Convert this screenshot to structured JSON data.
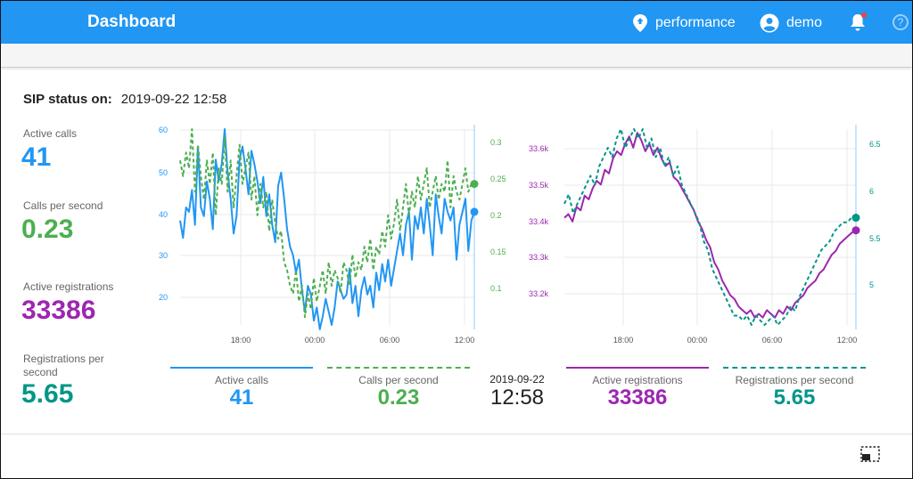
{
  "appbar": {
    "title": "Dashboard",
    "location_label": "performance",
    "user_label": "demo",
    "help_glyph": "?",
    "accent": "#2196f3"
  },
  "status": {
    "label": "SIP status on:",
    "datetime": "2019-09-22 12:58"
  },
  "metrics": [
    {
      "label": "Active calls",
      "value": "41",
      "color": "#2196f3"
    },
    {
      "label": "Calls per second",
      "value": "0.23",
      "color": "#4caf50"
    },
    {
      "label": "Active registrations",
      "value": "33386",
      "color": "#9c27b0"
    },
    {
      "label": "Registrations per second",
      "value": "5.65",
      "color": "#009688"
    }
  ],
  "legend": {
    "active_calls": {
      "label": "Active calls",
      "value": "41"
    },
    "calls_per_second": {
      "label": "Calls per second",
      "value": "0.23"
    },
    "date": "2019-09-22",
    "time": "12:58",
    "active_registrations": {
      "label": "Active registrations",
      "value": "33386"
    },
    "registrations_per_second": {
      "label": "Registrations per second",
      "value": "5.65"
    }
  },
  "chart_data": [
    {
      "type": "line",
      "x_ticks": [
        "18:00",
        "00:00",
        "06:00",
        "12:00"
      ],
      "y_left_ticks": [
        "60",
        "50",
        "40",
        "30",
        "20"
      ],
      "y_left_range": [
        15,
        60
      ],
      "y_right_ticks": [
        "0.3",
        "0.25",
        "0.2",
        "0.15",
        "0.1"
      ],
      "y_right_range": [
        0.05,
        0.3
      ],
      "grid": true,
      "series": [
        {
          "name": "Active calls",
          "axis": "left",
          "style": "solid",
          "color": "#2196f3",
          "values": [
            39,
            35,
            42,
            41,
            46,
            38,
            56,
            42,
            40,
            48,
            44,
            37,
            53,
            48,
            52,
            60,
            50,
            44,
            36,
            40,
            53,
            56,
            51,
            45,
            55,
            52,
            48,
            43,
            49,
            40,
            45,
            38,
            34,
            47,
            50,
            44,
            37,
            33,
            31,
            27,
            30,
            23,
            18,
            24,
            22,
            16,
            19,
            14,
            17,
            21,
            18,
            15,
            19,
            25,
            23,
            21,
            22,
            28,
            20,
            24,
            17,
            23,
            26,
            22,
            24,
            19,
            27,
            23,
            29,
            25,
            30,
            24,
            28,
            32,
            36,
            31,
            38,
            41,
            30,
            40,
            37,
            42,
            36,
            44,
            38,
            31,
            45,
            40,
            36,
            44,
            41,
            39,
            42,
            30,
            38,
            41,
            44,
            32,
            39,
            41
          ]
        },
        {
          "name": "Calls per second",
          "axis": "right",
          "style": "dashed",
          "color": "#4caf50",
          "values": [
            0.26,
            0.24,
            0.27,
            0.25,
            0.3,
            0.22,
            0.28,
            0.24,
            0.21,
            0.26,
            0.23,
            0.27,
            0.19,
            0.25,
            0.23,
            0.29,
            0.22,
            0.26,
            0.2,
            0.24,
            0.28,
            0.23,
            0.25,
            0.27,
            0.21,
            0.24,
            0.19,
            0.23,
            0.2,
            0.22,
            0.17,
            0.21,
            0.18,
            0.16,
            0.17,
            0.13,
            0.12,
            0.1,
            0.09,
            0.12,
            0.08,
            0.1,
            0.06,
            0.09,
            0.07,
            0.11,
            0.08,
            0.1,
            0.12,
            0.09,
            0.13,
            0.1,
            0.12,
            0.11,
            0.09,
            0.13,
            0.12,
            0.1,
            0.14,
            0.11,
            0.13,
            0.12,
            0.15,
            0.13,
            0.16,
            0.12,
            0.15,
            0.14,
            0.17,
            0.15,
            0.19,
            0.16,
            0.18,
            0.21,
            0.17,
            0.2,
            0.23,
            0.19,
            0.22,
            0.2,
            0.24,
            0.21,
            0.23,
            0.25,
            0.2,
            0.22,
            0.24,
            0.21,
            0.23,
            0.22,
            0.26,
            0.2,
            0.24,
            0.22,
            0.21,
            0.23,
            0.25,
            0.22,
            0.23,
            0.23
          ]
        }
      ]
    },
    {
      "type": "line",
      "x_ticks": [
        "18:00",
        "00:00",
        "06:00",
        "12:00"
      ],
      "y_left_ticks": [
        "33.6k",
        "33.5k",
        "33.4k",
        "33.3k",
        "33.2k"
      ],
      "y_left_range": [
        33130,
        33660
      ],
      "y_right_ticks": [
        "6.5",
        "6",
        "5.5",
        "5"
      ],
      "y_right_range": [
        4.5,
        6.6
      ],
      "grid": true,
      "series": [
        {
          "name": "Active registrations",
          "axis": "left",
          "style": "solid",
          "color": "#9c27b0",
          "values": [
            33420,
            33430,
            33410,
            33450,
            33440,
            33480,
            33470,
            33500,
            33520,
            33510,
            33550,
            33540,
            33580,
            33600,
            33590,
            33620,
            33640,
            33610,
            33650,
            33630,
            33600,
            33620,
            33590,
            33610,
            33580,
            33560,
            33570,
            33530,
            33520,
            33500,
            33480,
            33460,
            33440,
            33410,
            33390,
            33360,
            33340,
            33300,
            33280,
            33250,
            33230,
            33210,
            33200,
            33180,
            33170,
            33160,
            33170,
            33150,
            33160,
            33150,
            33170,
            33160,
            33150,
            33170,
            33160,
            33180,
            33170,
            33190,
            33200,
            33210,
            33230,
            33240,
            33250,
            33270,
            33280,
            33300,
            33320,
            33330,
            33350,
            33360,
            33370,
            33380,
            33386
          ]
        },
        {
          "name": "Registrations per second",
          "axis": "right",
          "style": "dashed",
          "color": "#009688",
          "values": [
            5.8,
            5.9,
            5.7,
            5.8,
            5.9,
            6.0,
            6.1,
            6.0,
            6.2,
            6.3,
            6.4,
            6.3,
            6.5,
            6.6,
            6.4,
            6.5,
            6.6,
            6.5,
            6.6,
            6.4,
            6.5,
            6.3,
            6.4,
            6.2,
            6.3,
            6.1,
            6.2,
            6.0,
            5.9,
            5.8,
            5.7,
            5.6,
            5.4,
            5.3,
            5.1,
            5.0,
            4.9,
            4.8,
            4.7,
            4.6,
            4.6,
            4.55,
            4.6,
            4.5,
            4.6,
            4.55,
            4.5,
            4.55,
            4.6,
            4.5,
            4.55,
            4.6,
            4.7,
            4.65,
            4.8,
            4.9,
            5.0,
            5.1,
            5.2,
            5.3,
            5.35,
            5.4,
            5.5,
            5.55,
            5.6,
            5.6,
            5.65,
            5.65
          ]
        }
      ]
    }
  ]
}
